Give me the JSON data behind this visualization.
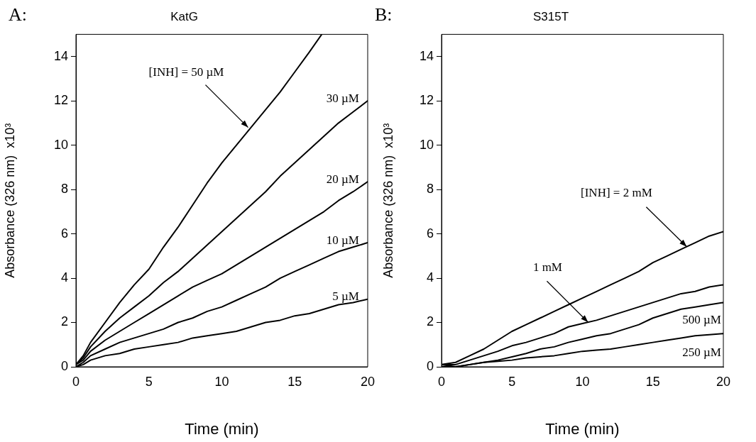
{
  "chart_data": [
    {
      "type": "line",
      "title": "KatG",
      "xlabel": "Time (min)",
      "ylabel": "Absorbance (326 nm)  x10³",
      "xlim": [
        0,
        20
      ],
      "ylim": [
        0,
        15
      ],
      "xticks": [
        0,
        5,
        10,
        15,
        20
      ],
      "yticks": [
        0,
        2,
        4,
        6,
        8,
        10,
        12,
        14
      ],
      "grid": false,
      "legend": false,
      "marker": "none",
      "line_style": "solid",
      "x": [
        0,
        0.5,
        1,
        2,
        3,
        4,
        5,
        6,
        7,
        8,
        9,
        10,
        11,
        12,
        13,
        14,
        15,
        16,
        17,
        18,
        19,
        20
      ],
      "series": [
        {
          "color": "#000000",
          "x": [
            0,
            0.5,
            1,
            2,
            3,
            4,
            5,
            6,
            7,
            8,
            9,
            10,
            11,
            12,
            13,
            14,
            15,
            16,
            16.85
          ],
          "values": [
            0.1,
            0.5,
            1.1,
            2.0,
            2.9,
            3.7,
            4.4,
            5.4,
            6.3,
            7.3,
            8.3,
            9.2,
            10.0,
            10.8,
            11.6,
            12.4,
            13.3,
            14.2,
            15
          ]
        },
        {
          "color": "#000000",
          "values": [
            0.1,
            0.4,
            0.9,
            1.6,
            2.2,
            2.7,
            3.2,
            3.8,
            4.3,
            4.9,
            5.5,
            6.1,
            6.7,
            7.3,
            7.9,
            8.6,
            9.2,
            9.8,
            10.4,
            11.0,
            11.5,
            12.0
          ]
        },
        {
          "color": "#000000",
          "values": [
            0.1,
            0.3,
            0.7,
            1.2,
            1.6,
            2.0,
            2.4,
            2.8,
            3.2,
            3.6,
            3.9,
            4.2,
            4.6,
            5.0,
            5.4,
            5.8,
            6.2,
            6.6,
            7.0,
            7.5,
            7.9,
            8.35
          ]
        },
        {
          "color": "#000000",
          "values": [
            0,
            0.2,
            0.5,
            0.8,
            1.1,
            1.3,
            1.5,
            1.7,
            2.0,
            2.2,
            2.5,
            2.7,
            3.0,
            3.3,
            3.6,
            4.0,
            4.3,
            4.6,
            4.9,
            5.2,
            5.4,
            5.6
          ]
        },
        {
          "color": "#000000",
          "values": [
            0,
            0.1,
            0.3,
            0.5,
            0.6,
            0.8,
            0.9,
            1.0,
            1.1,
            1.3,
            1.4,
            1.5,
            1.6,
            1.8,
            2.0,
            2.1,
            2.3,
            2.4,
            2.6,
            2.8,
            2.9,
            3.05
          ]
        }
      ],
      "annotations": [
        "A:",
        {
          "text": "[INH] = 50 µM",
          "x": 11.8,
          "y": 10.8
        },
        {
          "text": "30 µM",
          "x": 20,
          "y": 12.0
        },
        {
          "text": "20 µM",
          "x": 20,
          "y": 8.35
        },
        {
          "text": "10 µM",
          "x": 20,
          "y": 5.6
        },
        {
          "text": "5 µM",
          "x": 20,
          "y": 3.05
        }
      ]
    },
    {
      "type": "line",
      "title": "S315T",
      "xlabel": "Time (min)",
      "ylabel": "Absorbance (326 nm)  x10³",
      "xlim": [
        0,
        20
      ],
      "ylim": [
        0,
        15
      ],
      "xticks": [
        0,
        5,
        10,
        15,
        20
      ],
      "yticks": [
        0,
        2,
        4,
        6,
        8,
        10,
        12,
        14
      ],
      "grid": false,
      "legend": false,
      "marker": "none",
      "line_style": "solid",
      "x": [
        0,
        1,
        2,
        3,
        4,
        5,
        6,
        7,
        8,
        9,
        10,
        11,
        12,
        13,
        14,
        15,
        16,
        17,
        18,
        19,
        20
      ],
      "series": [
        {
          "color": "#000000",
          "values": [
            0.1,
            0.2,
            0.5,
            0.8,
            1.2,
            1.6,
            1.9,
            2.2,
            2.5,
            2.8,
            3.1,
            3.4,
            3.7,
            4.0,
            4.3,
            4.7,
            5.0,
            5.3,
            5.6,
            5.9,
            6.1
          ]
        },
        {
          "color": "#000000",
          "values": [
            0.1,
            0.1,
            0.3,
            0.5,
            0.7,
            0.95,
            1.1,
            1.3,
            1.5,
            1.8,
            1.95,
            2.1,
            2.3,
            2.5,
            2.7,
            2.9,
            3.1,
            3.3,
            3.4,
            3.6,
            3.7
          ]
        },
        {
          "color": "#000000",
          "values": [
            0.1,
            0,
            0.1,
            0.2,
            0.3,
            0.45,
            0.6,
            0.8,
            0.9,
            1.1,
            1.25,
            1.4,
            1.5,
            1.7,
            1.9,
            2.2,
            2.4,
            2.6,
            2.7,
            2.8,
            2.9
          ]
        },
        {
          "color": "#000000",
          "values": [
            0,
            0,
            0.1,
            0.2,
            0.25,
            0.3,
            0.4,
            0.45,
            0.5,
            0.6,
            0.7,
            0.75,
            0.8,
            0.9,
            1.0,
            1.1,
            1.2,
            1.3,
            1.4,
            1.45,
            1.5
          ]
        }
      ],
      "annotations": [
        "B:",
        {
          "text": "[INH] = 2 mM",
          "x": 17.4,
          "y": 5.42
        },
        {
          "text": "1 mM",
          "x": 10.4,
          "y": 2.01
        },
        {
          "text": "500 µM",
          "x": 20,
          "y": 2.9
        },
        {
          "text": "250 µM",
          "x": 20,
          "y": 1.5
        }
      ]
    }
  ]
}
